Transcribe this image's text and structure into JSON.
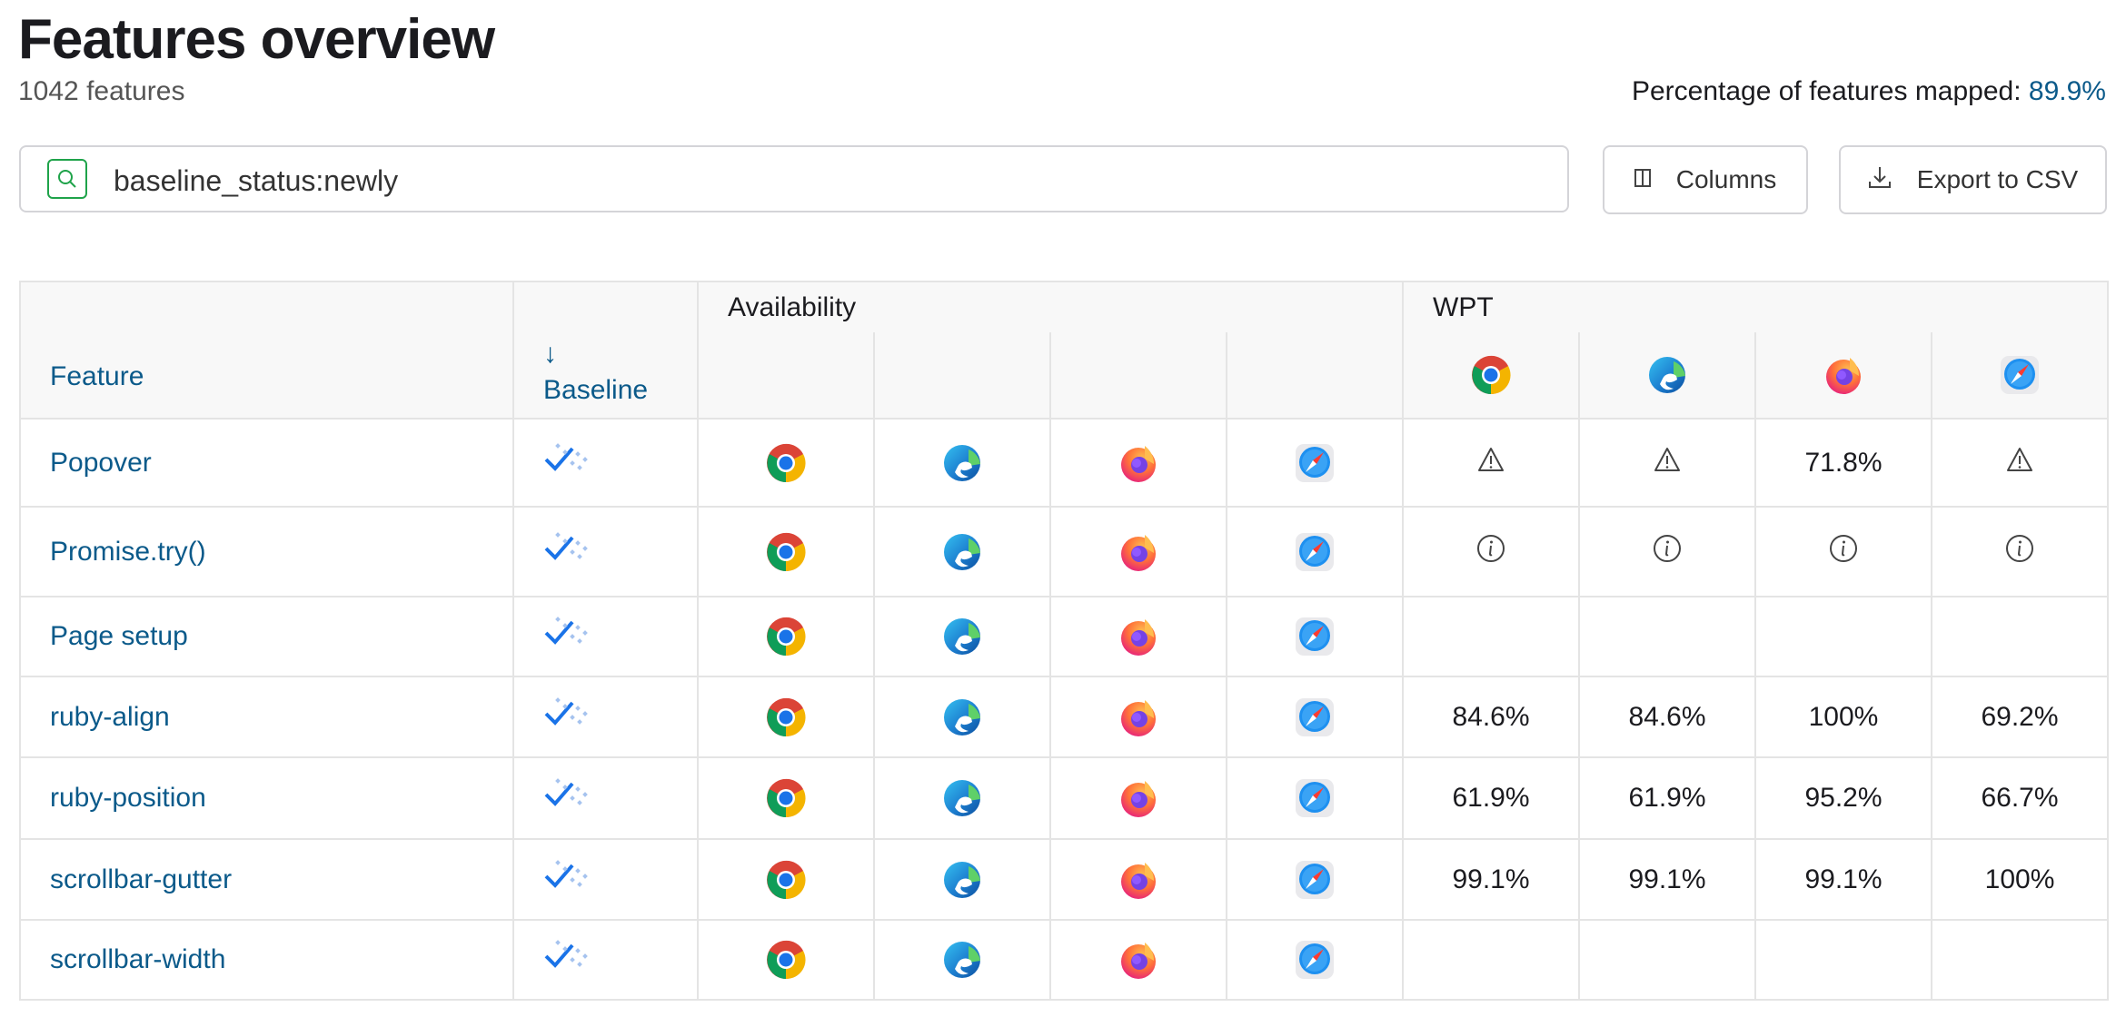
{
  "header": {
    "title": "Features overview",
    "count": "1042 features",
    "mapped_label": "Percentage of features mapped:",
    "mapped_value": "89.9%"
  },
  "search": {
    "value": "baseline_status:newly",
    "icon": "search-icon"
  },
  "toolbar": {
    "columns_label": "Columns",
    "export_label": "Export to CSV"
  },
  "table": {
    "headers": {
      "feature": "Feature",
      "baseline_sort_arrow": "↓",
      "baseline": "Baseline",
      "availability": "Availability",
      "wpt": "WPT"
    },
    "browsers": [
      "chrome",
      "edge",
      "firefox",
      "safari"
    ],
    "rows": [
      {
        "feature": "Popover",
        "wpt": [
          "warning",
          "warning",
          "71.8%",
          "warning"
        ]
      },
      {
        "feature": "Promise.try()",
        "wpt": [
          "info",
          "info",
          "info",
          "info"
        ]
      },
      {
        "feature": "Page setup",
        "wpt": [
          "",
          "",
          "",
          ""
        ]
      },
      {
        "feature": "ruby-align",
        "wpt": [
          "84.6%",
          "84.6%",
          "100%",
          "69.2%"
        ]
      },
      {
        "feature": "ruby-position",
        "wpt": [
          "61.9%",
          "61.9%",
          "95.2%",
          "66.7%"
        ]
      },
      {
        "feature": "scrollbar-gutter",
        "wpt": [
          "99.1%",
          "99.1%",
          "99.1%",
          "100%"
        ]
      },
      {
        "feature": "scrollbar-width",
        "wpt": [
          "",
          "",
          "",
          ""
        ]
      }
    ]
  },
  "colors": {
    "link": "#0b5a8a",
    "search_icon": "#1fa34a",
    "baseline_check": "#1a73e8"
  }
}
